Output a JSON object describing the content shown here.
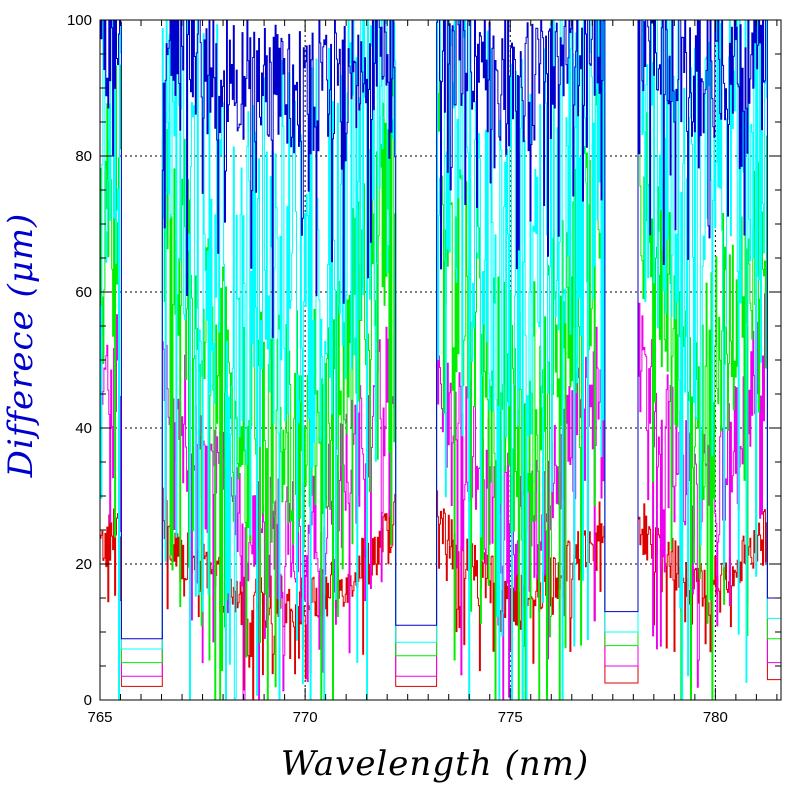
{
  "chart_data": {
    "type": "line",
    "xlabel": "Wavelength (nm)",
    "ylabel": "Differece (μm)",
    "xlim": [
      765,
      781.6
    ],
    "ylim": [
      0,
      100
    ],
    "x_ticks": [
      765,
      770,
      775,
      780
    ],
    "x_tick_labels": [
      "765",
      "770",
      "775",
      "780"
    ],
    "y_ticks": [
      0,
      20,
      40,
      60,
      80,
      100
    ],
    "y_tick_labels": [
      "0",
      "20",
      "40",
      "60",
      "80",
      "100"
    ],
    "grid": "dotted",
    "legend": "none",
    "colors": {
      "red": "#dd0000",
      "magenta": "#ee00ee",
      "green": "#00ee00",
      "cyan": "#00ffff",
      "blue": "#0000cc",
      "ylabel": "#0000cc",
      "xlabel": "#000000"
    },
    "dip_centers": [
      766.0,
      772.7,
      777.7,
      781.5
    ],
    "dip_half_widths": [
      0.5,
      0.5,
      0.4,
      0.25
    ],
    "dip_floor_values": {
      "red": [
        2,
        2,
        2.5,
        3
      ],
      "magenta": [
        3.5,
        3.5,
        5,
        5.5
      ],
      "green": [
        5.5,
        6.5,
        8,
        9
      ],
      "cyan": [
        7.5,
        8.5,
        10,
        12
      ],
      "blue": [
        9,
        11,
        13,
        15
      ]
    },
    "series": [
      {
        "color_key": "red",
        "baseline_max": 28,
        "baseline_min": 7,
        "spread": 4
      },
      {
        "color_key": "magenta",
        "baseline_max": 55,
        "baseline_min": 8,
        "spread": 10
      },
      {
        "color_key": "green",
        "baseline_max": 85,
        "baseline_min": 16,
        "spread": 18
      },
      {
        "color_key": "cyan",
        "baseline_max": 100,
        "baseline_min": 45,
        "spread": 30
      },
      {
        "color_key": "blue",
        "baseline_max": 100,
        "baseline_min": 85,
        "spread": 10
      }
    ]
  }
}
